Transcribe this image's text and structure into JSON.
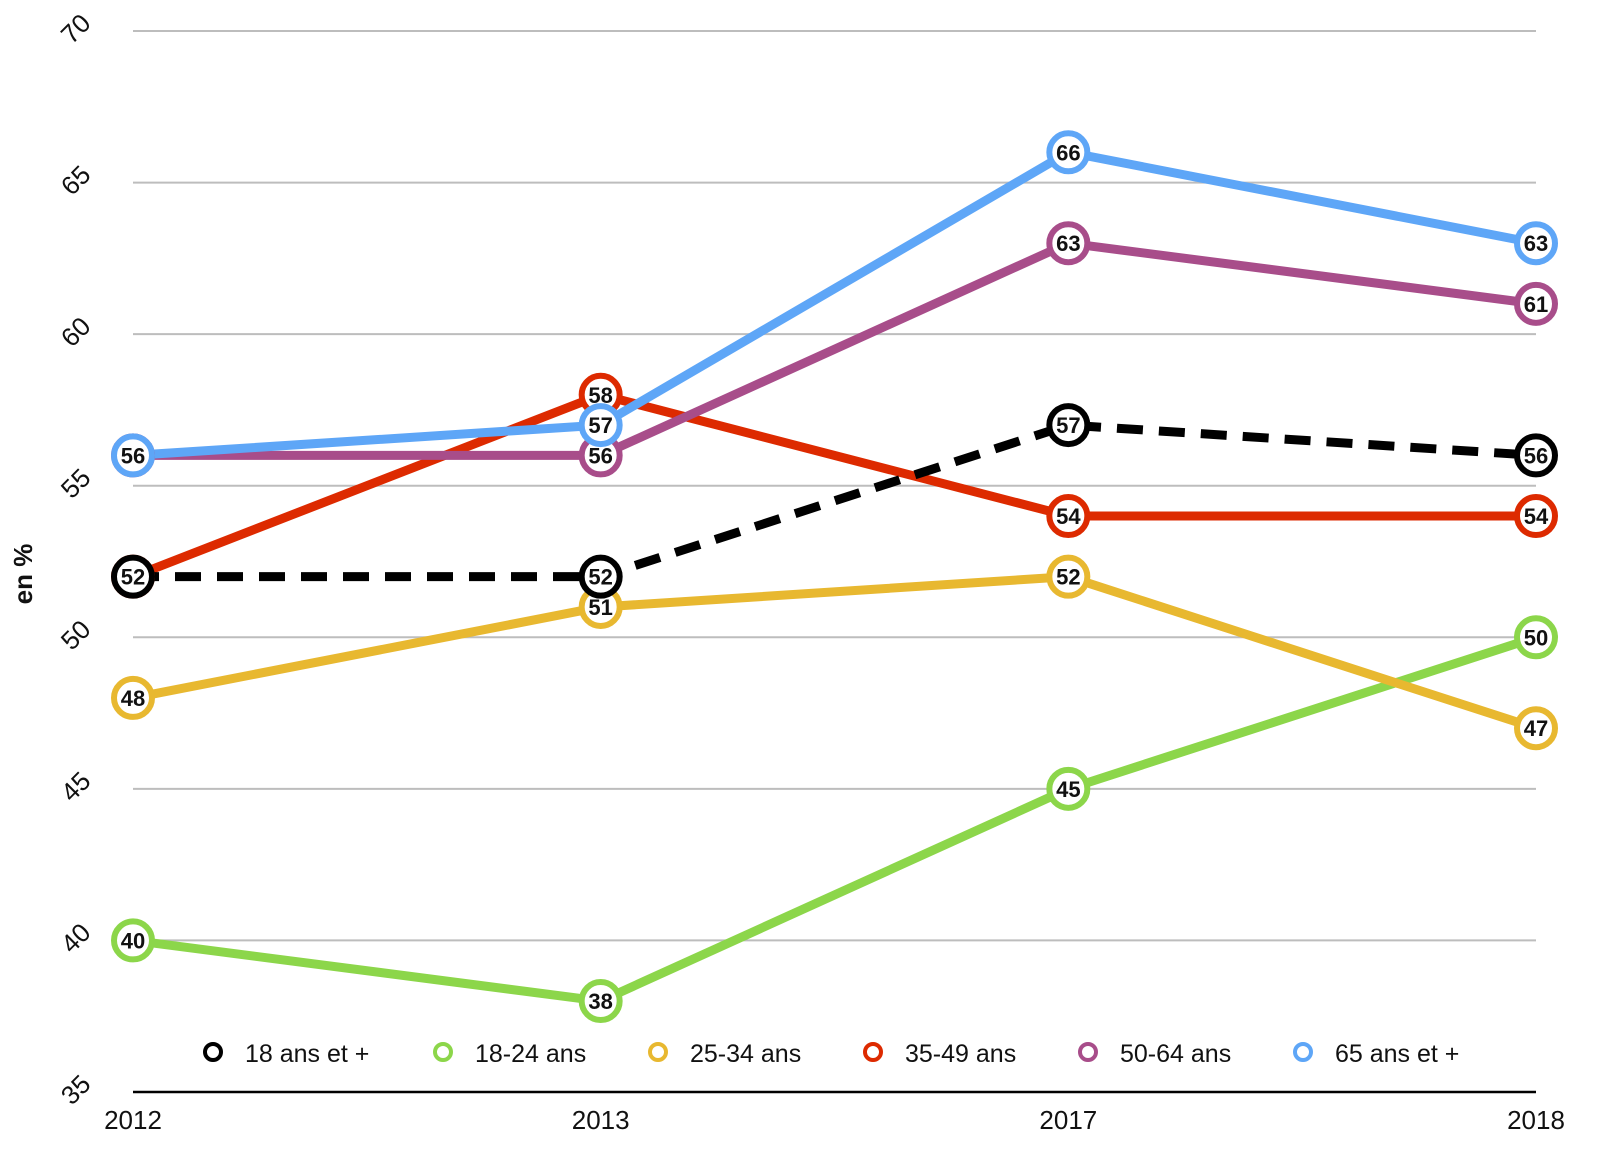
{
  "chart_data": {
    "type": "line",
    "title": "",
    "xlabel": "",
    "ylabel": "en %",
    "x": [
      "2012",
      "2013",
      "2017",
      "2018"
    ],
    "yticks": [
      "35",
      "40",
      "45",
      "50",
      "55",
      "60",
      "65",
      "70"
    ],
    "ylim": [
      35,
      70
    ],
    "grid": true,
    "legend_position": "bottom",
    "series": [
      {
        "name": "18 ans et +",
        "values": [
          52,
          52,
          57,
          56
        ],
        "color": "#000000",
        "dashed": true
      },
      {
        "name": "18-24 ans",
        "values": [
          40,
          38,
          45,
          50
        ],
        "color": "#8cd64a",
        "dashed": false
      },
      {
        "name": "25-34 ans",
        "values": [
          48,
          51,
          52,
          47
        ],
        "color": "#e8b830",
        "dashed": false
      },
      {
        "name": "35-49 ans",
        "values": [
          52,
          58,
          54,
          54
        ],
        "color": "#dd2a00",
        "dashed": false
      },
      {
        "name": "50-64 ans",
        "values": [
          56,
          56,
          63,
          61
        ],
        "color": "#a84d8a",
        "dashed": false
      },
      {
        "name": "65 ans et +",
        "values": [
          56,
          57,
          66,
          63
        ],
        "color": "#5ea6f7",
        "dashed": false
      }
    ]
  }
}
